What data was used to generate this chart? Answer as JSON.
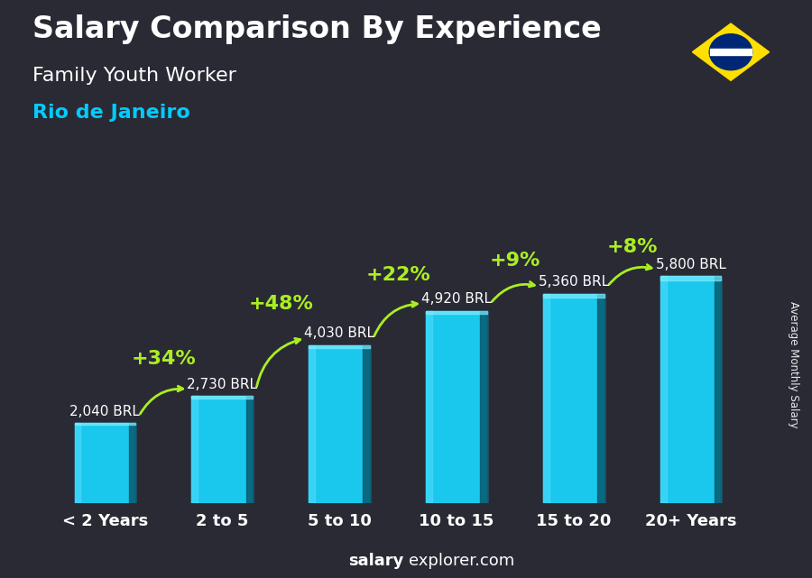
{
  "title": "Salary Comparison By Experience",
  "subtitle": "Family Youth Worker",
  "city": "Rio de Janeiro",
  "categories": [
    "< 2 Years",
    "2 to 5",
    "5 to 10",
    "10 to 15",
    "15 to 20",
    "20+ Years"
  ],
  "values": [
    2040,
    2730,
    4030,
    4920,
    5360,
    5800
  ],
  "pct_labels": [
    "+34%",
    "+48%",
    "+22%",
    "+9%",
    "+8%"
  ],
  "value_labels": [
    "2,040 BRL",
    "2,730 BRL",
    "4,030 BRL",
    "4,920 BRL",
    "5,360 BRL",
    "5,800 BRL"
  ],
  "title_fontsize": 24,
  "subtitle_fontsize": 16,
  "city_fontsize": 16,
  "bar_label_fontsize": 11,
  "pct_fontsize": 16,
  "xlabel_fontsize": 13,
  "ylabel_text": "Average Monthly Salary",
  "footer_bold": "salary",
  "footer_normal": "explorer.com",
  "bar_color_main": "#1ac8ed",
  "bar_color_left": "#50ddff",
  "bar_color_right": "#065a70",
  "bar_color_top": "#80eeff",
  "pct_color": "#aaee22",
  "title_color": "#ffffff",
  "subtitle_color": "#ffffff",
  "city_color": "#00ccff",
  "label_color": "#ffffff",
  "tick_color": "#ffffff",
  "bg_color": "#2a2a35",
  "ylim_max": 7400,
  "bar_width": 0.52,
  "arc_rads": [
    -0.35,
    -0.35,
    -0.35,
    -0.35,
    -0.35
  ],
  "arc_label_offsets": [
    1400,
    1700,
    1300,
    1100,
    900
  ]
}
